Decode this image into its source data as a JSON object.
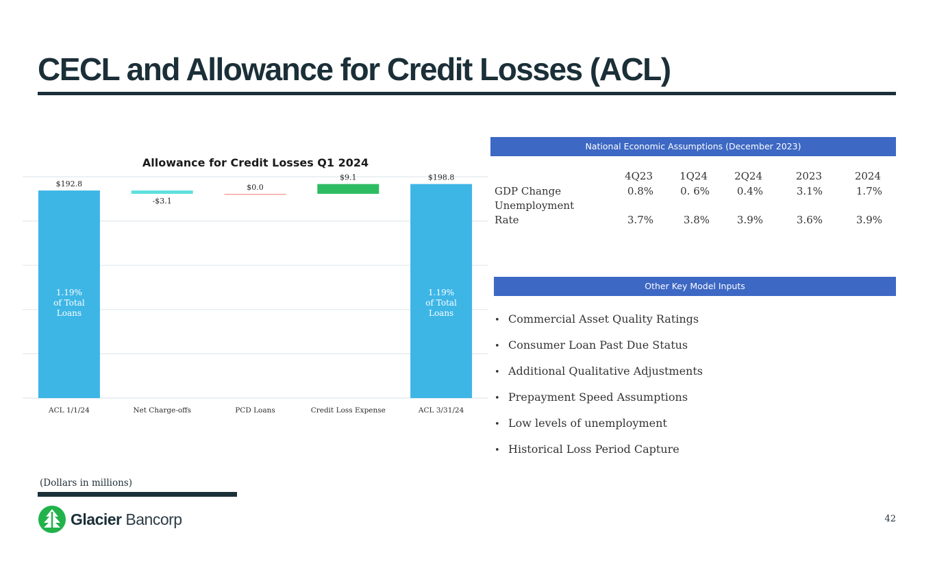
{
  "slide": {
    "title": "CECL and Allowance for Credit Losses (ACL)",
    "footnote": "(Dollars in millions)",
    "page_number": "42"
  },
  "brand": {
    "name_bold": "Glacier",
    "name_light": "Bancorp",
    "colors": {
      "navy": "#1b2f38",
      "green": "#21b24b",
      "blue": "#3d68c4",
      "bar_blue": "#3db6e6",
      "teal": "#5ee0de"
    }
  },
  "chart_data": {
    "type": "bar",
    "title": "Allowance for Credit Losses Q1 2024",
    "categories": [
      "ACL 1/1/24",
      "Net Charge-offs",
      "PCD Loans",
      "Credit Loss Expense",
      "ACL 3/31/24"
    ],
    "values": [
      192.8,
      -3.1,
      0.0,
      9.1,
      198.8
    ],
    "data_labels": [
      "$192.8",
      "-$3.1",
      "$0.0",
      "$9.1",
      "$198.8"
    ],
    "bar_notes": [
      [
        "1.19%",
        "of Total",
        "Loans"
      ],
      null,
      null,
      null,
      [
        "1.19%",
        "of Total",
        "Loans"
      ]
    ],
    "measure": [
      "absolute",
      "relative",
      "relative",
      "relative",
      "absolute"
    ],
    "colors": [
      "#3db6e6",
      "#5ee0de",
      "#f4a49a",
      "#2ebc63",
      "#3db6e6"
    ],
    "ylim": [
      0,
      200
    ],
    "grid": true
  },
  "assumptions": {
    "header": "National Economic Assumptions (December 2023)",
    "columns": [
      "4Q23",
      "1Q24",
      "2Q24",
      "2023",
      "2024"
    ],
    "rows": [
      {
        "label_lines": [
          "GDP Change"
        ],
        "values": [
          "0.8%",
          "0. 6%",
          "0.4%",
          "3.1%",
          "1.7%"
        ]
      },
      {
        "label_lines": [
          "Unemployment",
          "Rate"
        ],
        "values": [
          "3.7%",
          "3.8%",
          "3.9%",
          "3.6%",
          "3.9%"
        ]
      }
    ]
  },
  "inputs": {
    "header": "Other Key Model Inputs",
    "bullet": "•",
    "items": [
      "Commercial Asset Quality Ratings",
      "Consumer Loan Past Due Status",
      "Additional Qualitative Adjustments",
      "Prepayment Speed Assumptions",
      "Low levels of unemployment",
      "Historical Loss Period Capture"
    ]
  }
}
